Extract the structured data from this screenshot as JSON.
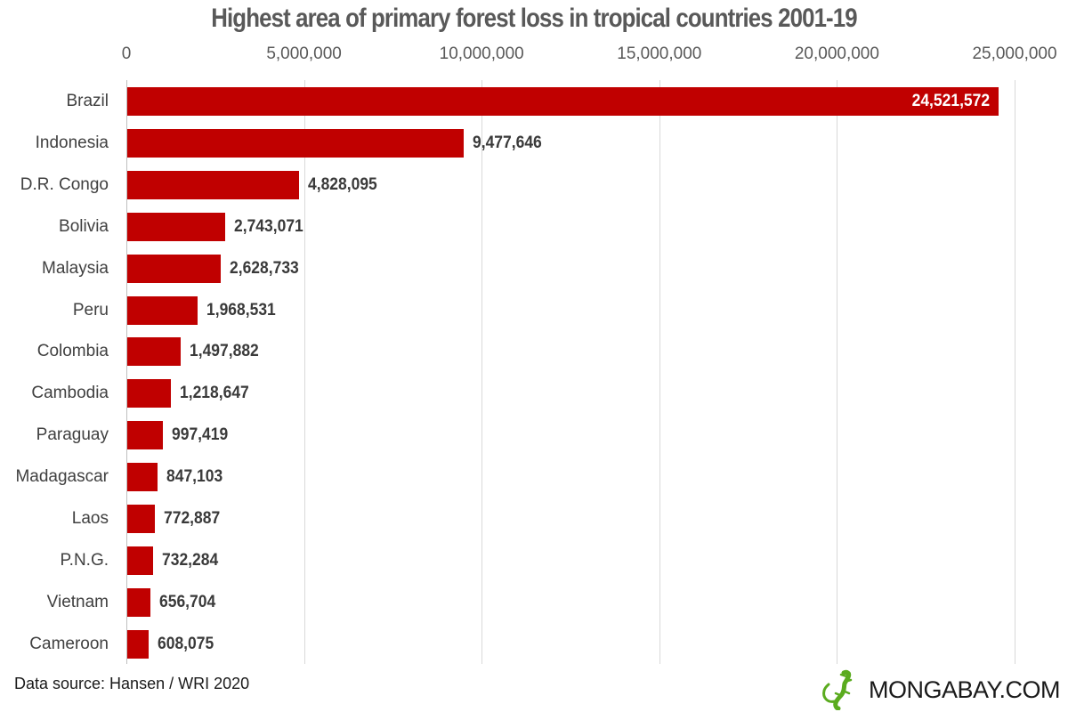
{
  "header": {
    "title": "Highest area of primary forest loss in tropical countries 2001-19"
  },
  "footer": {
    "source": "Data source: Hansen / WRI  2020",
    "brand": "MONGABAY.COM",
    "brand_icon": "gecko-logo-icon"
  },
  "colors": {
    "bar": "#c00000",
    "gridline": "#d9d9d9",
    "title": "#595959",
    "brand_green": "#5aab1e"
  },
  "axis": {
    "ticks": [
      "0",
      "5,000,000",
      "10,000,000",
      "15,000,000",
      "20,000,000",
      "25,000,000"
    ],
    "tick_values": [
      0,
      5000000,
      10000000,
      15000000,
      20000000,
      25000000
    ]
  },
  "bars": [
    {
      "label": "Brazil",
      "value": 24521572,
      "display": "24,521,572"
    },
    {
      "label": "Indonesia",
      "value": 9477646,
      "display": "9,477,646"
    },
    {
      "label": "D.R. Congo",
      "value": 4828095,
      "display": "4,828,095"
    },
    {
      "label": "Bolivia",
      "value": 2743071,
      "display": "2,743,071"
    },
    {
      "label": "Malaysia",
      "value": 2628733,
      "display": "2,628,733"
    },
    {
      "label": "Peru",
      "value": 1968531,
      "display": "1,968,531"
    },
    {
      "label": "Colombia",
      "value": 1497882,
      "display": "1,497,882"
    },
    {
      "label": "Cambodia",
      "value": 1218647,
      "display": "1,218,647"
    },
    {
      "label": "Paraguay",
      "value": 997419,
      "display": "997,419"
    },
    {
      "label": "Madagascar",
      "value": 847103,
      "display": "847,103"
    },
    {
      "label": "Laos",
      "value": 772887,
      "display": "772,887"
    },
    {
      "label": "P.N.G.",
      "value": 732284,
      "display": "732,284"
    },
    {
      "label": "Vietnam",
      "value": 656704,
      "display": "656,704"
    },
    {
      "label": "Cameroon",
      "value": 608075,
      "display": "608,075"
    }
  ],
  "chart_data": {
    "type": "bar",
    "orientation": "horizontal",
    "title": "Highest area of primary forest loss in tropical countries 2001-19",
    "xlabel": "",
    "ylabel": "",
    "categories": [
      "Brazil",
      "Indonesia",
      "D.R. Congo",
      "Bolivia",
      "Malaysia",
      "Peru",
      "Colombia",
      "Cambodia",
      "Paraguay",
      "Madagascar",
      "Laos",
      "P.N.G.",
      "Vietnam",
      "Cameroon"
    ],
    "values": [
      24521572,
      9477646,
      4828095,
      2743071,
      2628733,
      1968531,
      1497882,
      1218647,
      997419,
      847103,
      772887,
      732284,
      656704,
      608075
    ],
    "xlim": [
      0,
      25000000
    ],
    "x_ticks": [
      0,
      5000000,
      10000000,
      15000000,
      20000000,
      25000000
    ],
    "x_axis_position": "top",
    "grid": true,
    "data_labels": true,
    "legend": null,
    "source": "Data source: Hansen / WRI  2020"
  }
}
